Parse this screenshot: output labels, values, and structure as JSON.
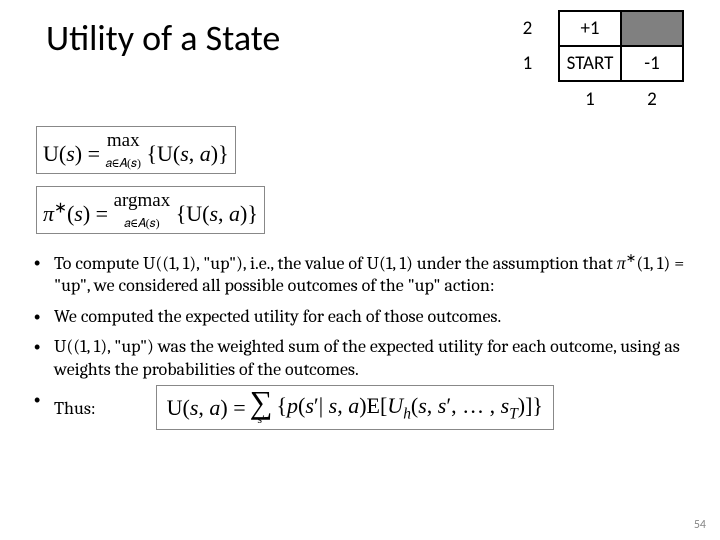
{
  "title": "Utility of a State",
  "grid": {
    "row2": {
      "label": "2",
      "cells": [
        "+1",
        ""
      ]
    },
    "row1": {
      "label": "1",
      "cells": [
        "START",
        "-1"
      ]
    },
    "col_labels": [
      "1",
      "2"
    ],
    "shaded_bg": "#808080"
  },
  "eq1": {
    "lhs": "U(s) = ",
    "op_top": "max",
    "op_bot": "a∈A(s)",
    "rhs": "{U(s, a)}"
  },
  "eq2": {
    "lhs": "π*(s) = ",
    "op_top": "argmax",
    "op_bot": "a∈A(s)",
    "rhs": "{U(s, a)}"
  },
  "bullets": {
    "b1_a": "To compute U((1, 1), \"up\"), i.e., the value of U(1, 1) under the assumption that π*(1, 1) = \"up\", we considered all possible outcomes of the \"up\" action:",
    "b2": "We computed the expected utility for each of those outcomes.",
    "b3": "U((1, 1), \"up\") was the weighted sum of the expected utility for each outcome, using as weights the probabilities of the outcomes.",
    "b4": "Thus:"
  },
  "eq_final": {
    "lhs": "U(s, a) = ",
    "sigma_bot": "s′",
    "body": "{p(s′| s, a)E[Uₕ(s, s′, … , s_T)]}"
  },
  "page_num": "54"
}
